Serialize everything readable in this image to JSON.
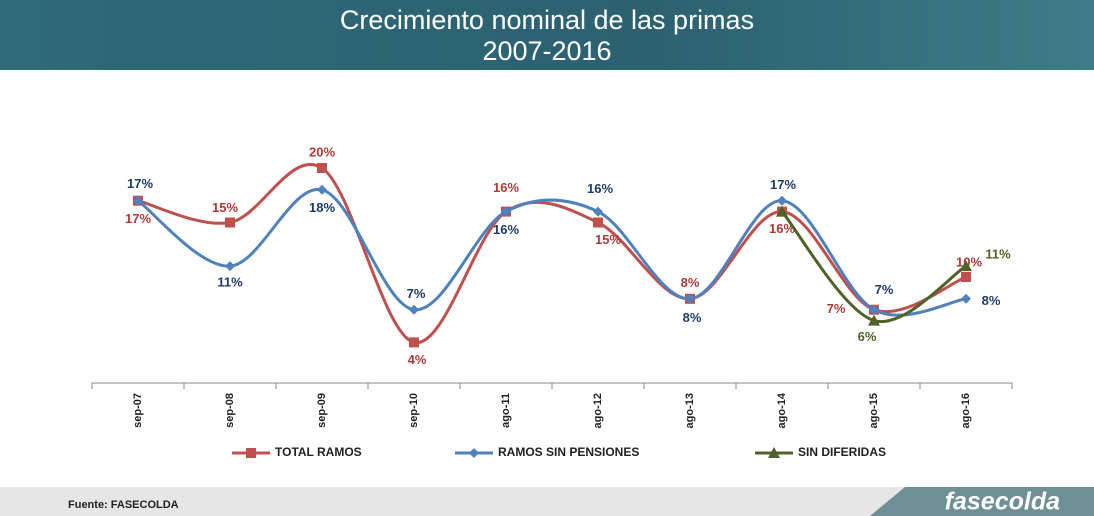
{
  "chart_data": {
    "type": "line",
    "title": "Crecimiento nominal de las primas",
    "subtitle": "2007-2016",
    "categories": [
      "sep-07",
      "sep-08",
      "sep-09",
      "sep-10",
      "ago-11",
      "ago-12",
      "ago-13",
      "ago-14",
      "ago-15",
      "ago-16"
    ],
    "series": [
      {
        "name": "TOTAL RAMOS",
        "color": "#c0504d",
        "marker": "square",
        "values": [
          17,
          15,
          20,
          4,
          16,
          15,
          8,
          16,
          7,
          10
        ],
        "value_labels": [
          "17%",
          "15%",
          "20%",
          "4%",
          "16%",
          "15%",
          "8%",
          "16%",
          "7%",
          "10%"
        ]
      },
      {
        "name": "RAMOS SIN PENSIONES",
        "color": "#4f81bd",
        "marker": "diamond",
        "values": [
          17,
          11,
          18,
          7,
          16,
          16,
          8,
          17,
          7,
          8
        ],
        "value_labels": [
          "17%",
          "11%",
          "18%",
          "7%",
          "16%",
          "16%",
          "8%",
          "17%",
          "7%",
          "8%"
        ]
      },
      {
        "name": "SIN DIFERIDAS",
        "color": "#4f6228",
        "marker": "triangle",
        "values": [
          null,
          null,
          null,
          null,
          null,
          null,
          null,
          16,
          6,
          11
        ],
        "value_labels": [
          null,
          null,
          null,
          null,
          null,
          null,
          null,
          null,
          "6%",
          "11%"
        ]
      }
    ],
    "legend": "bottom"
  },
  "footer": {
    "source": "Fuente: FASECOLDA",
    "logo": "fasecolda"
  }
}
